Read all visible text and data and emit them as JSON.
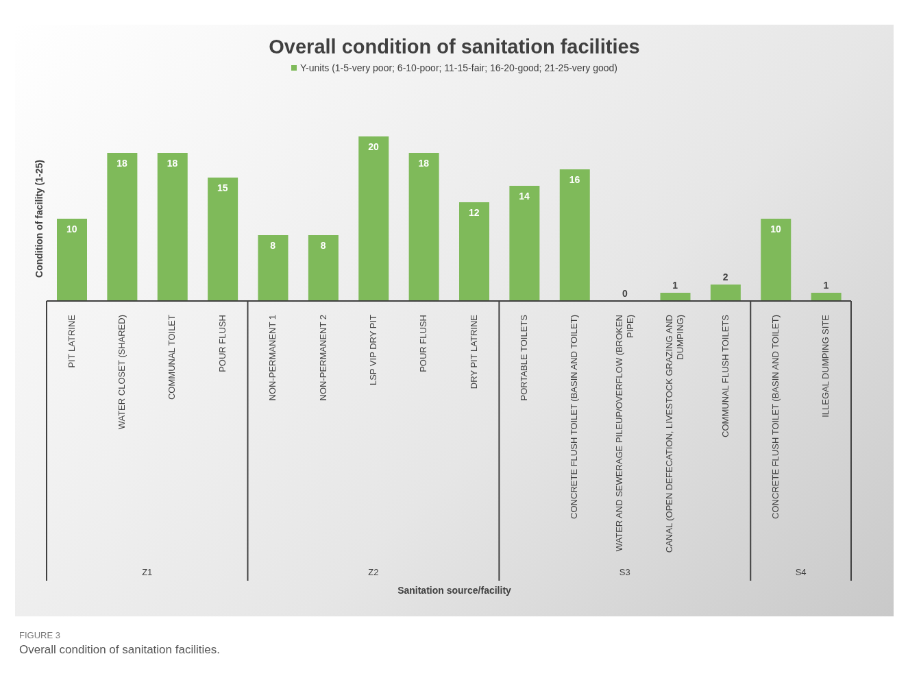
{
  "chart_data": {
    "type": "bar",
    "title": "Overall condition of sanitation facilities",
    "xlabel": "Sanitation source/facility",
    "ylabel": "Condition of facility (1-25)",
    "categories": [
      "PIT LATRINE",
      "WATER CLOSET (SHARED)",
      "COMMUNAL TOILET",
      "POUR FLUSH",
      "NON-PERMANENT 1",
      "NON-PERMANENT 2",
      "LSP VIP DRY PIT",
      "POUR FLUSH",
      "DRY PIT LATRINE",
      "PORTABLE TOILETS",
      "CONCRETE FLUSH TOILET (BASIN AND TOILET)",
      "WATER AND SEWERAGE PILEUP/OVERFLOW (BROKEN PIPE)",
      "CANAL (OPEN DEFECATION, LIVESTOCK GRAZING AND DUMPING)",
      "COMMUNAL FLUSH TOILETS",
      "CONCRETE FLUSH TOILET (BASIN AND TOILET)",
      "ILLEGAL DUMPING SITE"
    ],
    "series": [
      {
        "name": "Y-units (1-5-very poor; 6-10-poor; 11-15-fair; 16-20-good; 21-25-very good)",
        "color": "#7fba5a",
        "values": [
          10,
          18,
          18,
          15,
          8,
          8,
          20,
          18,
          12,
          14,
          16,
          0,
          1,
          2,
          10,
          1
        ]
      }
    ],
    "tick_labels": "x",
    "legend": "top",
    "data_labels": true,
    "annotations": [
      "Z1",
      "Z2",
      "S3",
      "S4",
      "FIGURE 3",
      "Overall condition of sanitation facilities."
    ]
  }
}
